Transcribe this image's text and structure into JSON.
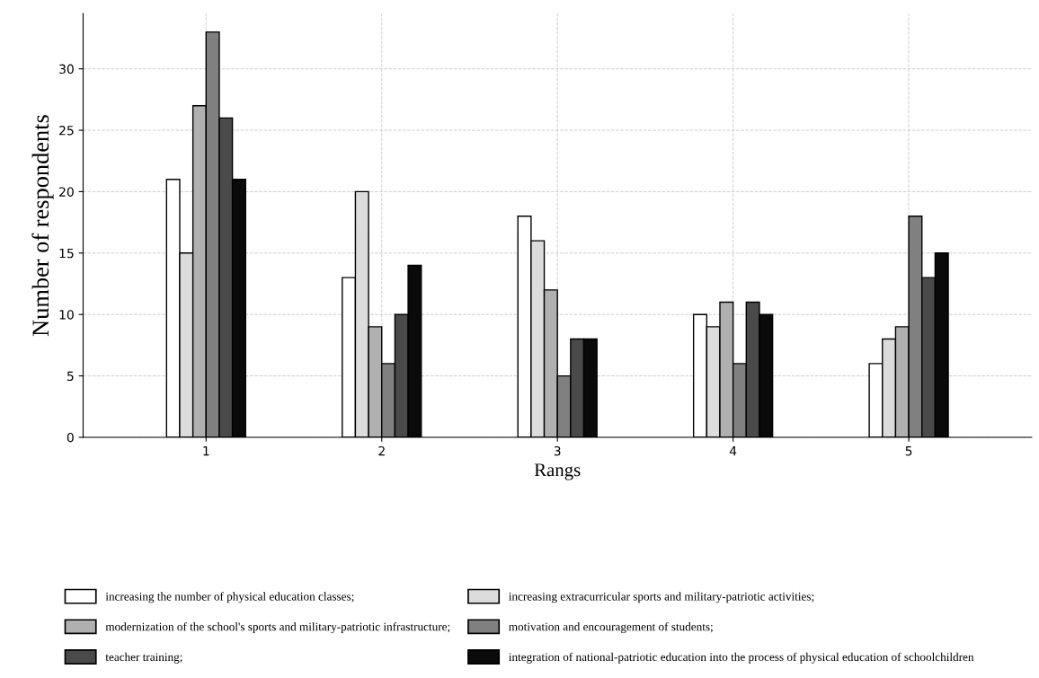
{
  "chart_data": {
    "type": "bar",
    "xlabel": "Rangs",
    "ylabel": "Number of respondents",
    "categories": [
      "1",
      "2",
      "3",
      "4",
      "5"
    ],
    "series": [
      {
        "name": "increasing the number of physical education classes;",
        "color": "#ffffff",
        "values": [
          21,
          13,
          18,
          10,
          6
        ]
      },
      {
        "name": "increasing extracurricular sports and military-patriotic activities;",
        "color": "#dcdcdc",
        "values": [
          15,
          20,
          16,
          9,
          8
        ]
      },
      {
        "name": "modernization of the school's sports and military-patriotic infrastructure;",
        "color": "#b0b0b0",
        "values": [
          27,
          9,
          12,
          11,
          9
        ]
      },
      {
        "name": "motivation and encouragement of students;",
        "color": "#808080",
        "values": [
          33,
          6,
          5,
          6,
          18
        ]
      },
      {
        "name": "teacher training;",
        "color": "#4a4a4a",
        "values": [
          26,
          10,
          8,
          11,
          13
        ]
      },
      {
        "name": "integration of national-patriotic education into the process of physical education of schoolchildren",
        "color": "#0a0a0a",
        "values": [
          21,
          14,
          8,
          10,
          15
        ]
      }
    ],
    "ylim": [
      0,
      34.5
    ],
    "yticks": [
      0,
      5,
      10,
      15,
      20,
      25,
      30
    ],
    "grid": true,
    "legend": "bottom"
  }
}
